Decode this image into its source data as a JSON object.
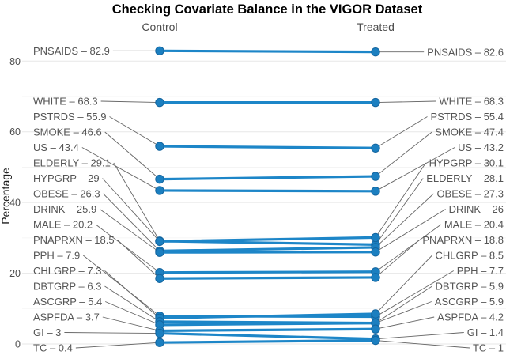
{
  "chart_data": {
    "type": "line",
    "variant": "slopegraph",
    "title": "Checking Covariate Balance in the VIGOR Dataset",
    "columns": [
      "Control",
      "Treated"
    ],
    "ylabel": "Percentage",
    "ylim": [
      0,
      88
    ],
    "yticks": [
      0,
      20,
      40,
      60,
      80
    ],
    "yticks_minor": [
      10,
      30,
      50,
      70
    ],
    "grid": true,
    "legend": "none",
    "colors": {
      "accent": "#1d86c8",
      "dot_fill": "#1b7fc0",
      "dot_stroke": "#14659f",
      "leader": "#666666",
      "label_text": "#555555",
      "header_text": "#4d4d4d",
      "axis_text": "#1a1a1a",
      "title_text": "#000000",
      "grid_major": "#e7e7e7",
      "grid_minor": "#f3f3f3"
    },
    "rows": [
      {
        "name": "PNSAIDS",
        "control": 82.9,
        "treated": 82.6,
        "left_label": "PNSAIDS – 82.9",
        "right_label": "PNSAIDS – 82.6"
      },
      {
        "name": "WHITE",
        "control": 68.3,
        "treated": 68.3,
        "left_label": "WHITE – 68.3",
        "right_label": "WHITE – 68.3"
      },
      {
        "name": "PSTRDS",
        "control": 55.9,
        "treated": 55.4,
        "left_label": "PSTRDS – 55.9",
        "right_label": "PSTRDS – 55.4"
      },
      {
        "name": "SMOKE",
        "control": 46.6,
        "treated": 47.4,
        "left_label": "SMOKE – 46.6",
        "right_label": "SMOKE – 47.4"
      },
      {
        "name": "US",
        "control": 43.4,
        "treated": 43.2,
        "left_label": "US – 43.4",
        "right_label": "US – 43.2"
      },
      {
        "name": "ELDERLY",
        "control": 29.1,
        "treated": 28.1,
        "left_label": "ELDERLY – 29.1",
        "right_label": "ELDERLY – 28.1"
      },
      {
        "name": "HYPGRP",
        "control": 29,
        "treated": 30.1,
        "left_label": "HYPGRP – 29",
        "right_label": "HYPGRP – 30.1"
      },
      {
        "name": "OBESE",
        "control": 26.3,
        "treated": 27.3,
        "left_label": "OBESE – 26.3",
        "right_label": "OBESE – 27.3"
      },
      {
        "name": "DRINK",
        "control": 25.9,
        "treated": 26,
        "left_label": "DRINK – 25.9",
        "right_label": "DRINK – 26"
      },
      {
        "name": "MALE",
        "control": 20.2,
        "treated": 20.4,
        "left_label": "MALE – 20.2",
        "right_label": "MALE – 20.4"
      },
      {
        "name": "PNAPRXN",
        "control": 18.5,
        "treated": 18.8,
        "left_label": "PNAPRXN – 18.5",
        "right_label": "PNAPRXN – 18.8"
      },
      {
        "name": "PPH",
        "control": 7.9,
        "treated": 7.7,
        "left_label": "PPH – 7.9",
        "right_label": "PPH – 7.7"
      },
      {
        "name": "CHLGRP",
        "control": 7.3,
        "treated": 8.5,
        "left_label": "CHLGRP – 7.3",
        "right_label": "CHLGRP – 8.5"
      },
      {
        "name": "DBTGRP",
        "control": 6.3,
        "treated": 5.9,
        "left_label": "DBTGRP – 6.3",
        "right_label": "DBTGRP – 5.9"
      },
      {
        "name": "ASCGRP",
        "control": 5.4,
        "treated": 5.9,
        "left_label": "ASCGRP – 5.4",
        "right_label": "ASCGRP – 5.9"
      },
      {
        "name": "ASPFDA",
        "control": 3.7,
        "treated": 4.2,
        "left_label": "ASPFDA – 3.7",
        "right_label": "ASPFDA – 4.2"
      },
      {
        "name": "GI",
        "control": 3,
        "treated": 1.4,
        "left_label": "GI – 3",
        "right_label": "GI – 1.4"
      },
      {
        "name": "TC",
        "control": 0.4,
        "treated": 1,
        "left_label": "TC – 0.4",
        "right_label": "TC – 1"
      }
    ]
  }
}
